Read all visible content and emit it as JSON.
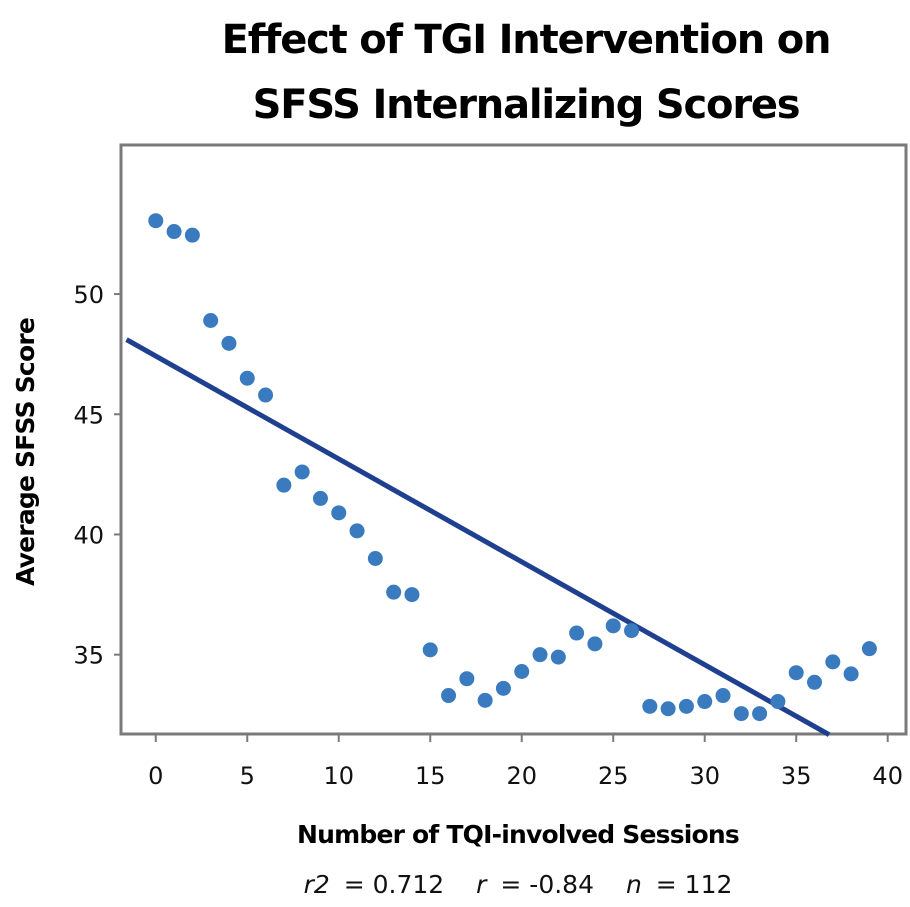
{
  "chart_data": {
    "type": "scatter",
    "title_lines": [
      "Effect of TGI Intervention on",
      "SFSS Internalizing Scores"
    ],
    "xlabel": "Number of TQI-involved Sessions",
    "ylabel": "Average SFSS Score",
    "xlim": [
      -1.9,
      41
    ],
    "ylim": [
      31.7,
      56.2
    ],
    "x_ticks": [
      0,
      5,
      10,
      15,
      20,
      25,
      30,
      35,
      40
    ],
    "y_ticks": [
      35,
      40,
      45,
      50
    ],
    "grid": false,
    "legend": "none",
    "series": [
      {
        "name": "Average SFSS Score",
        "color": "#3a7bbf",
        "x": [
          0,
          1,
          2,
          3,
          4,
          5,
          6,
          7,
          8,
          9,
          10,
          11,
          12,
          13,
          14,
          15,
          16,
          17,
          18,
          19,
          20,
          21,
          22,
          23,
          24,
          25,
          26,
          27,
          28,
          29,
          30,
          31,
          32,
          33,
          34,
          35,
          36,
          37,
          38,
          39
        ],
        "y": [
          53.05,
          52.6,
          52.45,
          48.9,
          47.95,
          46.5,
          45.8,
          42.05,
          42.6,
          41.5,
          40.9,
          40.15,
          39.0,
          37.6,
          37.5,
          35.2,
          33.3,
          34.0,
          33.1,
          33.6,
          34.3,
          35.0,
          34.9,
          35.9,
          35.45,
          36.2,
          36.0,
          32.85,
          32.75,
          32.85,
          33.05,
          33.3,
          32.55,
          32.55,
          33.05,
          34.25,
          33.85,
          34.7,
          34.2,
          35.25
        ]
      }
    ],
    "trendline": {
      "color": "#1f3f8f",
      "slope": -0.428,
      "intercept": 47.42,
      "x_range": [
        -1.6,
        36.8
      ]
    },
    "annotations": {
      "stats": [
        {
          "symbol": "r2",
          "value": "= 0.712"
        },
        {
          "symbol": "r",
          "value": "= -0.84"
        },
        {
          "symbol": "n",
          "value": "= 112"
        }
      ]
    }
  }
}
